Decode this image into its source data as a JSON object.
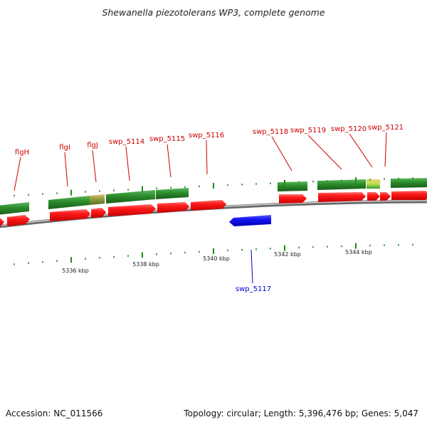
{
  "title": "Shewanella piezotolerans WP3, complete genome",
  "footer": {
    "accession": "Accession: NC_011566",
    "summary": "Topology: circular; Length: 5,396,476 bp; Genes: 5,047"
  },
  "colors": {
    "forward_gene": "#ff2020",
    "reverse_gene": "#1a1aee",
    "forward_label": "#cc0000",
    "reverse_label": "#0000cc",
    "feature_track": "#2a8a2a",
    "feature_track_light": "#9ac85a",
    "backbone": "#888888",
    "tick": "#1e8a1e"
  },
  "scale_labels": [
    {
      "kbp": 5336,
      "label": "5336 kbp"
    },
    {
      "kbp": 5338,
      "label": "5338 kbp"
    },
    {
      "kbp": 5340,
      "label": "5340 kbp"
    },
    {
      "kbp": 5342,
      "label": "5342 kbp"
    },
    {
      "kbp": 5344,
      "label": "5344 kbp"
    }
  ],
  "genes": [
    {
      "name": "flgH",
      "strand": "+"
    },
    {
      "name": "flgI",
      "strand": "+"
    },
    {
      "name": "flgJ",
      "strand": "+"
    },
    {
      "name": "swp_5114",
      "strand": "+"
    },
    {
      "name": "swp_5115",
      "strand": "+"
    },
    {
      "name": "swp_5116",
      "strand": "+"
    },
    {
      "name": "swp_5117",
      "strand": "-"
    },
    {
      "name": "swp_5118",
      "strand": "+"
    },
    {
      "name": "swp_5119",
      "strand": "+"
    },
    {
      "name": "swp_5120",
      "strand": "+"
    },
    {
      "name": "swp_5121",
      "strand": "+"
    }
  ]
}
